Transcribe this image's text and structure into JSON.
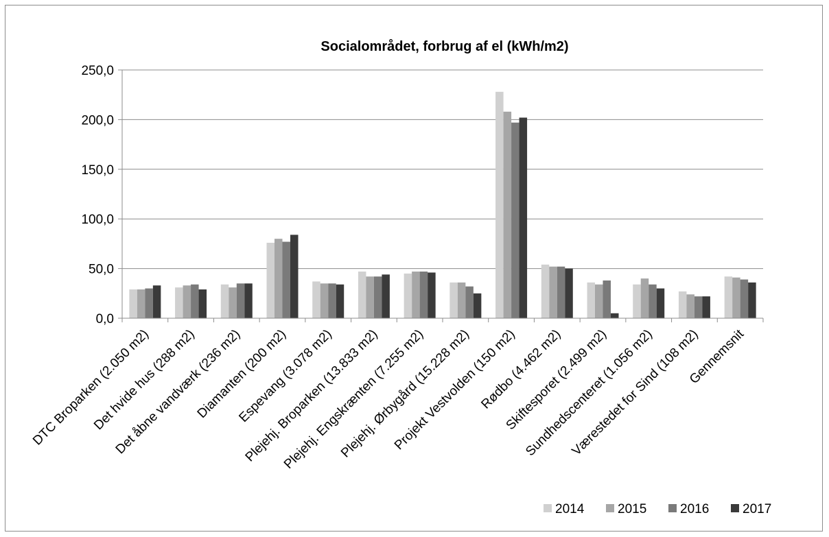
{
  "chart_data": {
    "type": "bar",
    "title": "Socialområdet, forbrug af el (kWh/m2)",
    "xlabel": "",
    "ylabel": "",
    "ylim": [
      0,
      250
    ],
    "yticks": [
      "0,0",
      "50,0",
      "100,0",
      "150,0",
      "200,0",
      "250,0"
    ],
    "grid": true,
    "legend_position": "bottom-right",
    "categories": [
      "DTC Broparken (2.050 m2)",
      "Det hvide hus (288 m2)",
      "Det åbne vandværk (236 m2)",
      "Diamanten (200 m2)",
      "Espevang (3.078 m2)",
      "Plejehj. Broparken (13.833 m2)",
      "Plejehj. Engskrænten (7.255 m2)",
      "Plejehj. Ørbygård (15.228 m2)",
      "Projekt Vestvolden (150 m2)",
      "Rødbo (4.462 m2)",
      "Skiftesporet (2.499 m2)",
      "Sundhedscenteret (1.056 m2)",
      "Værestedet for Sind (108 m2)",
      "Gennemsnit"
    ],
    "series": [
      {
        "name": "2014",
        "color": "#d0d0d0",
        "values": [
          29,
          31,
          34,
          76,
          37,
          47,
          45,
          36,
          228,
          54,
          36,
          34,
          27,
          42
        ]
      },
      {
        "name": "2015",
        "color": "#a6a6a6",
        "values": [
          29,
          33,
          31,
          80,
          35,
          42,
          47,
          36,
          208,
          52,
          34,
          40,
          24,
          41
        ]
      },
      {
        "name": "2016",
        "color": "#7a7a7a",
        "values": [
          30,
          34,
          35,
          77,
          35,
          42,
          47,
          32,
          197,
          52,
          38,
          34,
          22,
          39
        ]
      },
      {
        "name": "2017",
        "color": "#3a3a3a",
        "values": [
          33,
          29,
          35,
          84,
          34,
          44,
          46,
          25,
          202,
          50,
          5,
          30,
          22,
          36
        ]
      }
    ]
  }
}
